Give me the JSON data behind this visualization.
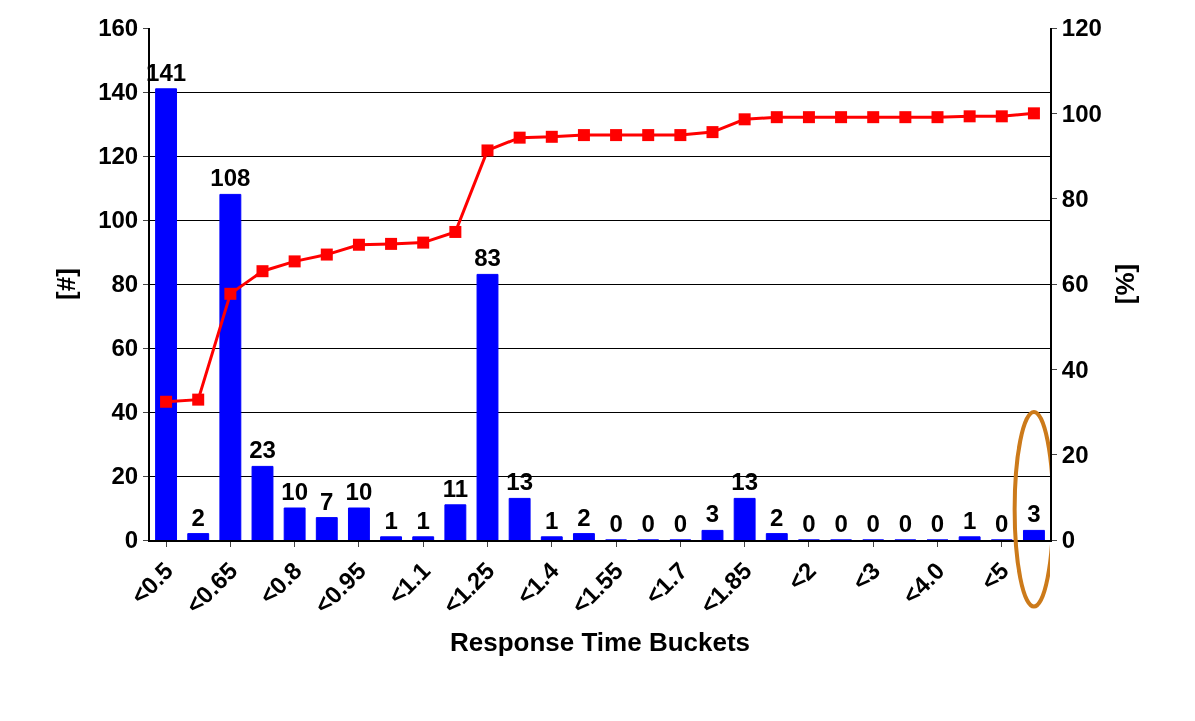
{
  "chart_data": {
    "type": "bar",
    "xlabel": "Response Time Buckets",
    "ylabel": "[#]",
    "y2label": "[%]",
    "categories": [
      "<0.5",
      null,
      "<0.65",
      null,
      "<0.8",
      null,
      "<0.95",
      null,
      "<1.1",
      null,
      "<1.25",
      null,
      "<1.4",
      null,
      "<1.55",
      null,
      "<1.7",
      null,
      "<1.85",
      null,
      "<2",
      null,
      "<3",
      null,
      "<4.0",
      null,
      "<5",
      null
    ],
    "series": [
      {
        "color": "#0000ff",
        "values": [
          141,
          2,
          108,
          23,
          10,
          7,
          10,
          1,
          1,
          11,
          83,
          13,
          1,
          2,
          0,
          0,
          0,
          3,
          13,
          2,
          0,
          0,
          0,
          0,
          0,
          1,
          0,
          3
        ],
        "value_labels": [
          "141",
          "2",
          "108",
          "23",
          "10",
          "7",
          "10",
          "1",
          "1",
          "11",
          "83",
          "13",
          "1",
          "2",
          "0",
          "0",
          "0",
          "3",
          "13",
          "2",
          "0",
          "0",
          "0",
          "0",
          "0",
          "1",
          "0",
          "3"
        ]
      },
      {
        "type": "line",
        "axis": "y2",
        "color": "#ff0000",
        "marker": "square",
        "line_style": "solid",
        "values": [
          32.4,
          32.9,
          57.7,
          63.0,
          65.3,
          66.9,
          69.2,
          69.4,
          69.7,
          72.2,
          91.3,
          94.3,
          94.5,
          94.9,
          94.9,
          94.9,
          94.9,
          95.6,
          98.6,
          99.1,
          99.1,
          99.1,
          99.1,
          99.1,
          99.1,
          99.3,
          99.3,
          100
        ]
      }
    ],
    "ylim": [
      0,
      160
    ],
    "yticks": [
      0,
      20,
      40,
      60,
      80,
      100,
      120,
      140,
      160
    ],
    "y2lim": [
      0,
      120
    ],
    "y2ticks": [
      0,
      20,
      40,
      60,
      80,
      100,
      120
    ],
    "grid": "y"
  }
}
